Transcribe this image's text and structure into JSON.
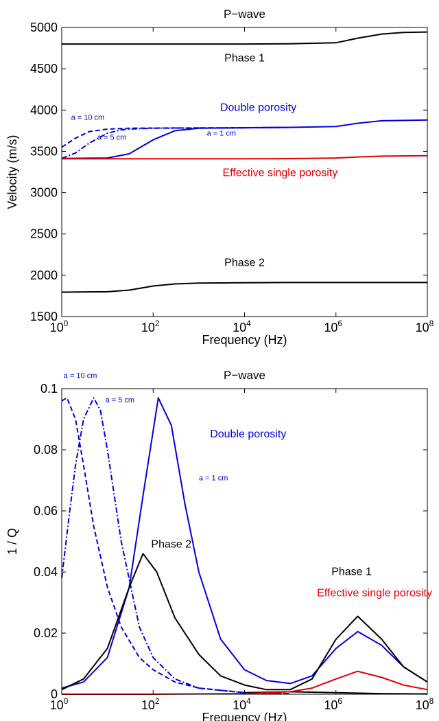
{
  "chart_data": [
    {
      "type": "line",
      "title": "P−wave",
      "xlabel": "Frequency (Hz)",
      "ylabel": "Velocity (m/s)",
      "x_scale": "log",
      "xlim": [
        1,
        100000000
      ],
      "ylim": [
        1500,
        5000
      ],
      "x_ticks": [
        {
          "base": "10",
          "exp": "0",
          "value": 1
        },
        {
          "base": "10",
          "exp": "2",
          "value": 100
        },
        {
          "base": "10",
          "exp": "4",
          "value": 10000
        },
        {
          "base": "10",
          "exp": "6",
          "value": 1000000
        },
        {
          "base": "10",
          "exp": "8",
          "value": 100000000
        }
      ],
      "y_ticks": [
        "1500",
        "2000",
        "2500",
        "3000",
        "3500",
        "4000",
        "4500",
        "5000"
      ],
      "y_tick_values": [
        1500,
        2000,
        2500,
        3000,
        3500,
        4000,
        4500,
        5000
      ],
      "colors": {
        "black": "#000000",
        "blue": "#0000dd",
        "red": "#e00000"
      },
      "series": [
        {
          "color": "black",
          "style": "solid",
          "x": [
            1,
            10,
            100,
            1000,
            10000,
            100000,
            1000000,
            3000000,
            10000000,
            30000000,
            100000000
          ],
          "y": [
            4800,
            4800,
            4800,
            4800,
            4800,
            4802,
            4815,
            4870,
            4920,
            4940,
            4945
          ]
        },
        {
          "color": "blue",
          "style": "solid",
          "x": [
            1,
            10,
            30,
            100,
            300,
            1000,
            10000,
            100000,
            1000000,
            3000000,
            10000000,
            100000000
          ],
          "y": [
            3415,
            3420,
            3470,
            3640,
            3750,
            3780,
            3785,
            3790,
            3800,
            3840,
            3870,
            3880
          ]
        },
        {
          "color": "blue",
          "style": "dashdot",
          "x": [
            1,
            2,
            4,
            10,
            20,
            30,
            100,
            10000,
            100000
          ],
          "y": [
            3415,
            3480,
            3600,
            3720,
            3760,
            3770,
            3780,
            3785,
            3790
          ]
        },
        {
          "color": "blue",
          "style": "dash",
          "x": [
            1,
            2,
            4,
            10,
            30,
            100,
            10000,
            100000
          ],
          "y": [
            3550,
            3660,
            3740,
            3770,
            3780,
            3782,
            3785,
            3790
          ]
        },
        {
          "color": "red",
          "style": "solid",
          "x": [
            1,
            10,
            100,
            1000,
            10000,
            100000,
            1000000,
            3000000,
            10000000,
            100000000
          ],
          "y": [
            3410,
            3410,
            3410,
            3410,
            3410,
            3412,
            3420,
            3432,
            3442,
            3448
          ]
        },
        {
          "color": "black",
          "style": "solid",
          "x": [
            1,
            10,
            30,
            100,
            300,
            1000,
            10000,
            100000,
            1000000,
            100000000
          ],
          "y": [
            1795,
            1800,
            1820,
            1870,
            1895,
            1905,
            1910,
            1912,
            1912,
            1912
          ]
        }
      ],
      "annotations": [
        {
          "text": "Phase 1",
          "color": "black",
          "x": 10000,
          "y": 4590,
          "anchor": "middle",
          "size": "normal"
        },
        {
          "text": "Double porosity",
          "color": "blue",
          "x": 20000,
          "y": 3990,
          "anchor": "middle",
          "size": "normal"
        },
        {
          "text": "Effective single porosity",
          "color": "red",
          "x": 60000,
          "y": 3200,
          "anchor": "middle",
          "size": "normal"
        },
        {
          "text": "Phase 2",
          "color": "black",
          "x": 10000,
          "y": 2110,
          "anchor": "middle",
          "size": "normal"
        },
        {
          "text": "a = 10 cm",
          "color": "blue",
          "x": 1.6,
          "y": 3880,
          "anchor": "start",
          "size": "small"
        },
        {
          "text": "a = 5 cm",
          "color": "blue",
          "x": 6,
          "y": 3640,
          "anchor": "start",
          "size": "small"
        },
        {
          "text": "a = 1 cm",
          "color": "blue",
          "x": 1500,
          "y": 3690,
          "anchor": "start",
          "size": "small"
        }
      ]
    },
    {
      "type": "line",
      "title": "P−wave",
      "xlabel": "Frequency (Hz)",
      "ylabel": "1 / Q",
      "x_scale": "log",
      "xlim": [
        1,
        100000000
      ],
      "ylim": [
        0,
        0.1
      ],
      "x_ticks": [
        {
          "base": "10",
          "exp": "0",
          "value": 1
        },
        {
          "base": "10",
          "exp": "2",
          "value": 100
        },
        {
          "base": "10",
          "exp": "4",
          "value": 10000
        },
        {
          "base": "10",
          "exp": "6",
          "value": 1000000
        },
        {
          "base": "10",
          "exp": "8",
          "value": 100000000
        }
      ],
      "y_ticks": [
        "0",
        "0.02",
        "0.04",
        "0.06",
        "0.08",
        "0.1"
      ],
      "y_tick_values": [
        0,
        0.02,
        0.04,
        0.06,
        0.08,
        0.1
      ],
      "colors": {
        "black": "#000000",
        "blue": "#0000dd",
        "red": "#e00000"
      },
      "series": [
        {
          "color": "blue",
          "style": "solid",
          "x": [
            1,
            3,
            10,
            30,
            60,
            130,
            250,
            500,
            1000,
            3000,
            10000,
            30000,
            100000,
            300000,
            1000000,
            3000000,
            10000000,
            30000000,
            100000000
          ],
          "y": [
            0.002,
            0.004,
            0.012,
            0.035,
            0.065,
            0.097,
            0.088,
            0.062,
            0.04,
            0.018,
            0.008,
            0.0045,
            0.0035,
            0.006,
            0.015,
            0.0205,
            0.016,
            0.009,
            0.004
          ]
        },
        {
          "color": "blue",
          "style": "dashdot",
          "x": [
            1,
            1.5,
            2,
            3,
            5,
            7,
            10,
            20,
            50,
            100,
            300,
            1000,
            10000,
            100000
          ],
          "y": [
            0.038,
            0.06,
            0.075,
            0.09,
            0.097,
            0.093,
            0.08,
            0.05,
            0.022,
            0.012,
            0.005,
            0.002,
            0.0005,
            0.0002
          ]
        },
        {
          "color": "blue",
          "style": "dash",
          "x": [
            1,
            1.3,
            2,
            3,
            5,
            10,
            20,
            50,
            100,
            300,
            1000,
            10000,
            100000
          ],
          "y": [
            0.096,
            0.097,
            0.09,
            0.075,
            0.055,
            0.035,
            0.022,
            0.012,
            0.008,
            0.004,
            0.002,
            0.0005,
            0.0002
          ]
        },
        {
          "color": "black",
          "style": "solid",
          "x": [
            1,
            3,
            10,
            30,
            60,
            120,
            300,
            1000,
            3000,
            10000,
            30000,
            100000,
            300000,
            1000000,
            3000000,
            10000000,
            30000000,
            100000000
          ],
          "y": [
            0.0015,
            0.005,
            0.015,
            0.035,
            0.046,
            0.04,
            0.025,
            0.013,
            0.006,
            0.003,
            0.0015,
            0.0015,
            0.005,
            0.018,
            0.0255,
            0.018,
            0.009,
            0.004
          ]
        },
        {
          "color": "black",
          "style": "solid",
          "x": [
            10000,
            100000,
            1000000,
            10000000,
            100000000
          ],
          "y": [
            0.0005,
            0.0008,
            0.0005,
            0.0002,
            0.0001
          ]
        },
        {
          "color": "red",
          "style": "solid",
          "x": [
            1,
            100,
            10000,
            100000,
            300000,
            1000000,
            3000000,
            10000000,
            30000000,
            100000000
          ],
          "y": [
            0,
            0,
            0.0002,
            0.0008,
            0.002,
            0.005,
            0.0075,
            0.0055,
            0.003,
            0.0015
          ]
        }
      ],
      "annotations": [
        {
          "text": "a = 10 cm",
          "color": "blue",
          "x": 1.1,
          "y": 0.1035,
          "anchor": "start",
          "size": "small"
        },
        {
          "text": "a = 5 cm",
          "color": "blue",
          "x": 9,
          "y": 0.0955,
          "anchor": "start",
          "size": "small"
        },
        {
          "text": "Double porosity",
          "color": "blue",
          "x": 12000,
          "y": 0.084,
          "anchor": "middle",
          "size": "normal"
        },
        {
          "text": "a = 1 cm",
          "color": "blue",
          "x": 1000,
          "y": 0.07,
          "anchor": "start",
          "size": "small"
        },
        {
          "text": "Phase 2",
          "color": "black",
          "x": 250,
          "y": 0.048,
          "anchor": "middle",
          "size": "normal"
        },
        {
          "text": "Phase 1",
          "color": "black",
          "x": 2200000,
          "y": 0.039,
          "anchor": "middle",
          "size": "normal"
        },
        {
          "text": "Effective single porosity",
          "color": "red",
          "x": 7000000,
          "y": 0.032,
          "anchor": "middle",
          "size": "normal"
        }
      ]
    }
  ]
}
